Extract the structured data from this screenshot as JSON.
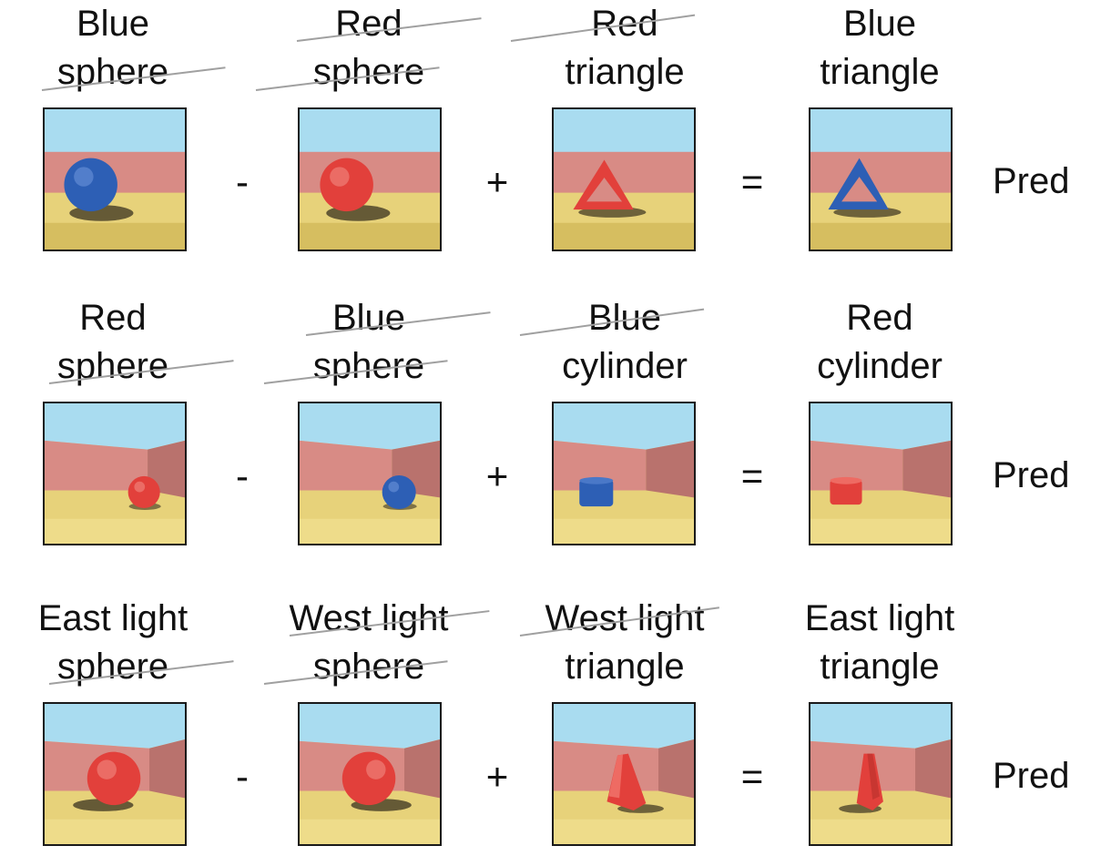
{
  "colors": {
    "sky": "#a9dcf0",
    "wall": "#d88b85",
    "floor": "#e7d27a",
    "blue_object": "#2d5fb5",
    "red_object": "#e2403b",
    "strike_line": "#a0a0a0"
  },
  "rows": [
    {
      "labels": [
        {
          "line1": "Blue",
          "line2": "sphere"
        },
        {
          "line1": "Red",
          "line2": "sphere"
        },
        {
          "line1": "Red",
          "line2": "triangle"
        },
        {
          "line1": "Blue",
          "line2": "triangle"
        }
      ],
      "operators": [
        "-",
        "+",
        "="
      ],
      "result_label": "Pred",
      "scene": "flat-wall",
      "objects": [
        "blue sphere",
        "red sphere",
        "red triangle",
        "blue triangle"
      ]
    },
    {
      "labels": [
        {
          "line1": "Red",
          "line2": "sphere"
        },
        {
          "line1": "Blue",
          "line2": "sphere"
        },
        {
          "line1": "Blue",
          "line2": "cylinder"
        },
        {
          "line1": "Red",
          "line2": "cylinder"
        }
      ],
      "operators": [
        "-",
        "+",
        "="
      ],
      "result_label": "Pred",
      "scene": "corner-wall",
      "objects": [
        "red sphere",
        "blue sphere",
        "blue cylinder",
        "red cylinder"
      ]
    },
    {
      "labels": [
        {
          "line1": "East light",
          "line2": "sphere"
        },
        {
          "line1": "West light",
          "line2": "sphere"
        },
        {
          "line1": "West light",
          "line2": "triangle"
        },
        {
          "line1": "East light",
          "line2": "triangle"
        }
      ],
      "operators": [
        "-",
        "+",
        "="
      ],
      "result_label": "Pred",
      "scene": "corner-wall",
      "objects": [
        "red sphere east light",
        "red sphere west light",
        "red triangle west light",
        "red triangle east light"
      ]
    }
  ]
}
